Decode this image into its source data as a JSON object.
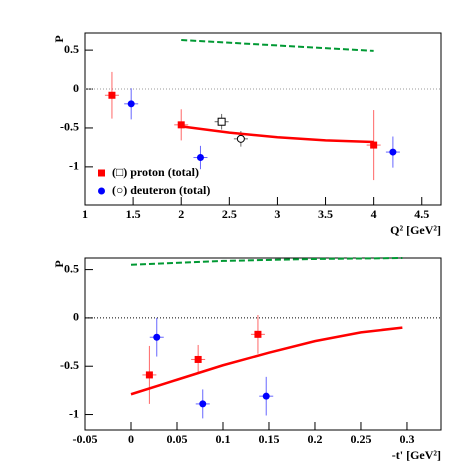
{
  "chart_data": [
    {
      "type": "scatter",
      "ylabel": "P",
      "xlabel": "Q² [GeV²]",
      "xlim": [
        1,
        4.7
      ],
      "ylim": [
        -1.49,
        0.72
      ],
      "xticks": [
        1,
        1.5,
        2,
        2.5,
        3,
        3.5,
        4,
        4.5
      ],
      "yticks": [
        0.5,
        0,
        -0.5,
        -1
      ],
      "zero_line": true,
      "zero_line_color": "#999",
      "series": [
        {
          "name": "(□) proton (total)",
          "color": "#ff0000",
          "marker": "square",
          "x": [
            1.28,
            2.0,
            4.0
          ],
          "values": [
            -0.08,
            -0.46,
            -0.72
          ],
          "errors": [
            0.3,
            0.2,
            0.45
          ]
        },
        {
          "name": "(○) deuteron (total)",
          "color": "#0000ff",
          "marker": "circle",
          "x": [
            1.48,
            2.2,
            4.2
          ],
          "values": [
            -0.19,
            -0.88,
            -0.81
          ],
          "errors": [
            0.2,
            0.15,
            0.2
          ]
        },
        {
          "color": "#000000",
          "marker": "open-square",
          "x": [
            2.42
          ],
          "values": [
            -0.42
          ],
          "errors": [
            0.1
          ]
        },
        {
          "color": "#000000",
          "marker": "open-circle",
          "x": [
            2.62
          ],
          "values": [
            -0.64
          ],
          "errors": [
            0.1
          ]
        },
        {
          "color": "#ff0000",
          "marker": "line",
          "x": [
            2.0,
            2.5,
            3.0,
            3.5,
            4.0
          ],
          "values": [
            -0.48,
            -0.56,
            -0.62,
            -0.66,
            -0.68
          ]
        },
        {
          "color": "#009933",
          "marker": "dashed",
          "x": [
            2.0,
            3.0,
            4.0
          ],
          "values": [
            0.63,
            0.56,
            0.49
          ]
        }
      ]
    },
    {
      "type": "scatter",
      "ylabel": "P",
      "xlabel": "-t' [GeV²]",
      "xlim": [
        -0.05,
        0.337
      ],
      "ylim": [
        -1.16,
        0.62
      ],
      "xticks": [
        -0.05,
        0,
        0.05,
        0.1,
        0.15,
        0.2,
        0.25,
        0.3
      ],
      "yticks": [
        0.5,
        0,
        -0.5,
        -1
      ],
      "zero_line": true,
      "zero_line_color": "#000",
      "series": [
        {
          "color": "#ff0000",
          "marker": "square",
          "x": [
            0.02,
            0.073,
            0.138
          ],
          "values": [
            -0.59,
            -0.43,
            -0.17
          ],
          "errors": [
            0.3,
            0.15,
            0.2
          ]
        },
        {
          "color": "#0000ff",
          "marker": "circle",
          "x": [
            0.028,
            0.078,
            0.147
          ],
          "values": [
            -0.2,
            -0.89,
            -0.81
          ],
          "errors": [
            0.2,
            0.15,
            0.2
          ]
        },
        {
          "color": "#ff0000",
          "marker": "line",
          "x": [
            0,
            0.05,
            0.1,
            0.15,
            0.2,
            0.25,
            0.295
          ],
          "values": [
            -0.79,
            -0.64,
            -0.49,
            -0.36,
            -0.24,
            -0.15,
            -0.1
          ]
        },
        {
          "color": "#009933",
          "marker": "dashed",
          "x": [
            0,
            0.1,
            0.2,
            0.295
          ],
          "values": [
            0.55,
            0.59,
            0.61,
            0.62
          ]
        }
      ]
    }
  ]
}
